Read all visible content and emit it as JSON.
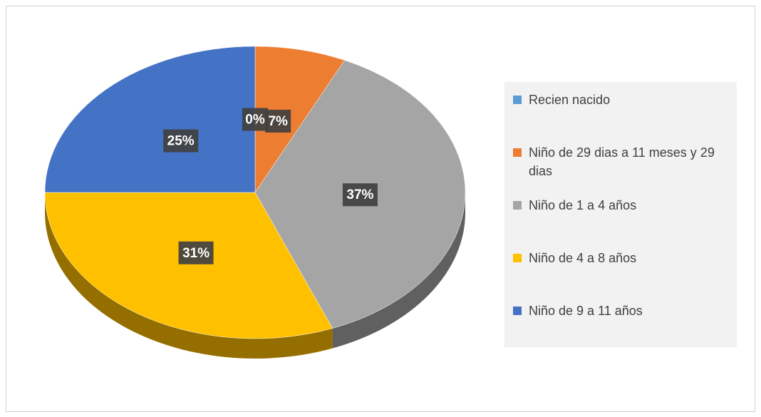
{
  "chart_data": {
    "type": "pie",
    "categories": [
      "Recien nacido",
      "Niño de 29 dias a 11 meses y 29 dias",
      "Niño de 1 a 4 años",
      "Niño de 4 a 8 años",
      "Niño de 9 a 11 años"
    ],
    "values": [
      0,
      7,
      37,
      31,
      25
    ],
    "value_labels": [
      "0%",
      "7%",
      "37%",
      "31%",
      "25%"
    ],
    "colors": [
      "#5b9bd5",
      "#ed7d31",
      "#a5a5a5",
      "#ffc000",
      "#4472c4"
    ],
    "legend": "right"
  }
}
